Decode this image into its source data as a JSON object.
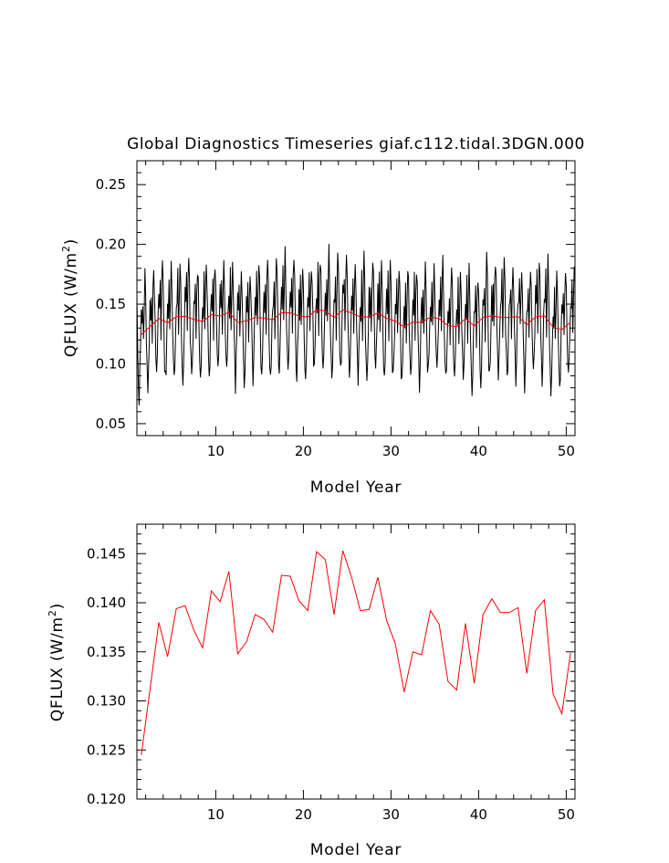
{
  "figure": {
    "background": "#ffffff",
    "frame_color": "#000000"
  },
  "chart_data": [
    {
      "type": "line",
      "title": "Global Diagnostics Timeseries giaf.c112.tidal.3DGN.000",
      "xlabel": "Model Year",
      "ylabel": "QFLUX (W/m",
      "ylabel_sup": "2",
      "ylabel_end": ")",
      "xlim": [
        1,
        51
      ],
      "ylim": [
        0.04,
        0.27
      ],
      "xticks": [
        10,
        20,
        30,
        40,
        50
      ],
      "xtick_labels": [
        "10",
        "20",
        "30",
        "40",
        "50"
      ],
      "yticks": [
        0.05,
        0.1,
        0.15,
        0.2,
        0.25
      ],
      "ytick_labels": [
        "0.05",
        "0.10",
        "0.15",
        "0.20",
        "0.25"
      ],
      "grid": false,
      "series": [
        {
          "kind": "monthly",
          "color": "#000000",
          "stroke_width": 1,
          "x_start": 1.0,
          "x_step": 0.0833333,
          "base_from": "annual",
          "seasonal_cycle": [
            0.028,
            -0.008,
            -0.037,
            -0.05,
            -0.035,
            -0.006,
            0.018,
            0.004,
            0.032,
            -0.012,
            0.023,
            0.046
          ],
          "noise_seed": 17,
          "noise_amp": 0.02
        },
        {
          "kind": "annual_running",
          "color": "#ff0000",
          "stroke_width": 1,
          "from": "annual"
        }
      ]
    },
    {
      "type": "line",
      "xlabel": "Model Year",
      "ylabel": "QFLUX (W/m",
      "ylabel_sup": "2",
      "ylabel_end": ")",
      "xlim": [
        1,
        51
      ],
      "ylim": [
        0.12,
        0.148
      ],
      "xticks": [
        10,
        20,
        30,
        40,
        50
      ],
      "xtick_labels": [
        "10",
        "20",
        "30",
        "40",
        "50"
      ],
      "yticks": [
        0.12,
        0.125,
        0.13,
        0.135,
        0.14,
        0.145
      ],
      "ytick_labels": [
        "0.120",
        "0.125",
        "0.130",
        "0.135",
        "0.140",
        "0.145"
      ],
      "grid": false,
      "series": [
        {
          "name": "annual",
          "color": "#ff0000",
          "stroke_width": 1,
          "x": [
            1.5,
            2.5,
            3.5,
            4.5,
            5.5,
            6.5,
            7.5,
            8.5,
            9.5,
            10.5,
            11.5,
            12.5,
            13.5,
            14.5,
            15.5,
            16.5,
            17.5,
            18.5,
            19.5,
            20.5,
            21.5,
            22.5,
            23.5,
            24.5,
            25.5,
            26.5,
            27.5,
            28.5,
            29.5,
            30.5,
            31.5,
            32.5,
            33.5,
            34.5,
            35.5,
            36.5,
            37.5,
            38.5,
            39.5,
            40.5,
            41.5,
            42.5,
            43.5,
            44.5,
            45.5,
            46.5,
            47.5,
            48.5,
            49.5,
            50.5
          ],
          "values": [
            0.1245,
            0.1312,
            0.138,
            0.1345,
            0.1394,
            0.1397,
            0.1372,
            0.1354,
            0.1412,
            0.1401,
            0.1432,
            0.1348,
            0.136,
            0.1388,
            0.1383,
            0.137,
            0.1428,
            0.1427,
            0.1402,
            0.1392,
            0.1452,
            0.1444,
            0.1388,
            0.1453,
            0.1426,
            0.1392,
            0.1393,
            0.1426,
            0.1382,
            0.1358,
            0.1309,
            0.135,
            0.1347,
            0.1392,
            0.1378,
            0.132,
            0.1311,
            0.1379,
            0.1318,
            0.1388,
            0.1404,
            0.139,
            0.139,
            0.1395,
            0.1328,
            0.1392,
            0.1403,
            0.1307,
            0.1287,
            0.1349
          ]
        }
      ]
    }
  ]
}
